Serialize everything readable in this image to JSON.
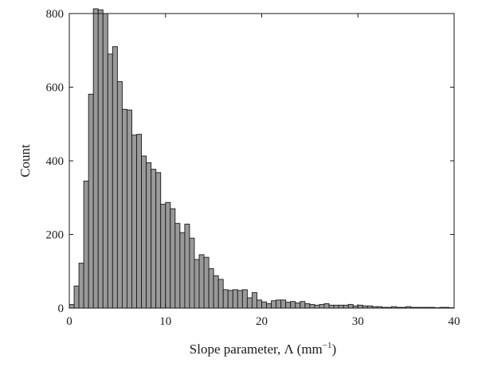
{
  "chart_data": {
    "type": "bar",
    "subtype": "histogram",
    "title": "",
    "xlabel": "Slope parameter, Λ (mm",
    "xlabel_superscript": "−1",
    "xlabel_close": ")",
    "ylabel": "Count",
    "xlim": [
      0,
      40
    ],
    "ylim": [
      0,
      800
    ],
    "xticks": [
      0,
      10,
      20,
      30,
      40
    ],
    "yticks": [
      0,
      200,
      400,
      600,
      800
    ],
    "grid": false,
    "bar_color": "#999999",
    "edge_color": "#1a1a1a",
    "bin_width": 0.5,
    "bin_starts": [
      0,
      0.5,
      1,
      1.5,
      2,
      2.5,
      3,
      3.5,
      4,
      4.5,
      5,
      5.5,
      6,
      6.5,
      7,
      7.5,
      8,
      8.5,
      9,
      9.5,
      10,
      10.5,
      11,
      11.5,
      12,
      12.5,
      13,
      13.5,
      14,
      14.5,
      15,
      15.5,
      16,
      16.5,
      17,
      17.5,
      18,
      18.5,
      19,
      19.5,
      20,
      20.5,
      21,
      21.5,
      22,
      22.5,
      23,
      23.5,
      24,
      24.5,
      25,
      25.5,
      26,
      26.5,
      27,
      27.5,
      28,
      28.5,
      29,
      29.5,
      30,
      30.5,
      31,
      31.5,
      32,
      32.5,
      33,
      33.5,
      34,
      34.5,
      35,
      35.5,
      36,
      36.5,
      37,
      37.5,
      38,
      38.5,
      39,
      39.5
    ],
    "counts": [
      10,
      60,
      122,
      345,
      581,
      813,
      810,
      800,
      690,
      710,
      615,
      540,
      538,
      470,
      472,
      413,
      395,
      377,
      368,
      282,
      287,
      270,
      230,
      205,
      228,
      190,
      132,
      145,
      138,
      107,
      88,
      78,
      50,
      48,
      50,
      48,
      50,
      28,
      42,
      22,
      17,
      12,
      20,
      22,
      22,
      16,
      18,
      14,
      18,
      12,
      10,
      8,
      10,
      12,
      8,
      8,
      8,
      8,
      10,
      6,
      8,
      6,
      6,
      4,
      4,
      2,
      2,
      4,
      2,
      2,
      4,
      2,
      2,
      2,
      2,
      2,
      1,
      2,
      2,
      1
    ]
  }
}
